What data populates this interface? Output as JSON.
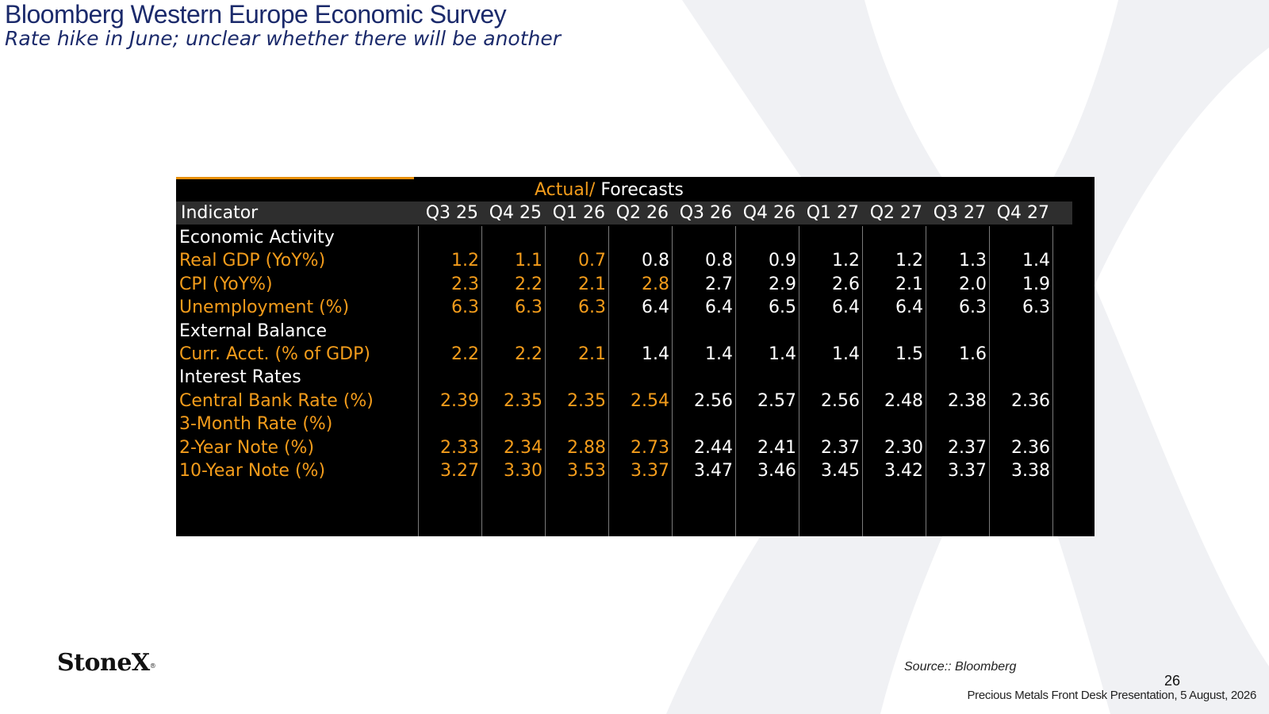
{
  "slide": {
    "title": "Bloomberg Western Europe Economic Survey",
    "subtitle": "Rate hike in June; unclear whether there will be another"
  },
  "table": {
    "group_label_a": "Actual",
    "group_label_sep": "/",
    "group_label_b": " Forecasts",
    "indicator_header": "Indicator",
    "columns": [
      "Q3 25",
      "Q4 25",
      "Q1 26",
      "Q2 26",
      "Q3 26",
      "Q4 26",
      "Q1 27",
      "Q2 27",
      "Q3 27",
      "Q4 27"
    ],
    "actual_count": 3,
    "rows": [
      {
        "label": "Economic Activity",
        "kind": "section",
        "values": []
      },
      {
        "label": "Real GDP (YoY%)",
        "kind": "data",
        "values": [
          "1.2",
          "1.1",
          "0.7",
          "0.8",
          "0.8",
          "0.9",
          "1.2",
          "1.2",
          "1.3",
          "1.4"
        ]
      },
      {
        "label": "CPI (YoY%)",
        "kind": "data",
        "values": [
          "2.3",
          "2.2",
          "2.1",
          "2.8",
          "2.7",
          "2.9",
          "2.6",
          "2.1",
          "2.0",
          "1.9"
        ]
      },
      {
        "label": "Unemployment (%)",
        "kind": "data",
        "values": [
          "6.3",
          "6.3",
          "6.3",
          "6.4",
          "6.4",
          "6.5",
          "6.4",
          "6.4",
          "6.3",
          "6.3"
        ]
      },
      {
        "label": "External Balance",
        "kind": "section",
        "values": []
      },
      {
        "label": "Curr. Acct. (% of GDP)",
        "kind": "data",
        "values": [
          "2.2",
          "2.2",
          "2.1",
          "1.4",
          "1.4",
          "1.4",
          "1.4",
          "1.5",
          "1.6",
          ""
        ]
      },
      {
        "label": "Interest Rates",
        "kind": "section",
        "values": []
      },
      {
        "label": "Central Bank Rate (%)",
        "kind": "data",
        "values": [
          "2.39",
          "2.35",
          "2.35",
          "2.54",
          "2.56",
          "2.57",
          "2.56",
          "2.48",
          "2.38",
          "2.36"
        ]
      },
      {
        "label": "3-Month Rate (%)",
        "kind": "data",
        "values": [
          "",
          "",
          "",
          "",
          "",
          "",
          "",
          "",
          "",
          ""
        ]
      },
      {
        "label": "2-Year Note (%)",
        "kind": "data",
        "values": [
          "2.33",
          "2.34",
          "2.88",
          "2.73",
          "2.44",
          "2.41",
          "2.37",
          "2.30",
          "2.37",
          "2.36"
        ]
      },
      {
        "label": "10-Year Note (%)",
        "kind": "data",
        "values": [
          "3.27",
          "3.30",
          "3.53",
          "3.37",
          "3.47",
          "3.46",
          "3.45",
          "3.42",
          "3.37",
          "3.38"
        ]
      }
    ],
    "orange_cells": [
      "1.0",
      "1.1",
      "1.2",
      "2.0",
      "2.1",
      "2.2",
      "2.3",
      "3.0",
      "3.1",
      "3.2",
      "5.0",
      "5.1",
      "5.2",
      "7.0",
      "7.1",
      "7.2",
      "7.3",
      "9.0",
      "9.1",
      "9.2",
      "9.3",
      "10.0",
      "10.1",
      "10.2",
      "10.3"
    ]
  },
  "branding": {
    "logo": "StoneX",
    "logo_mark": "®"
  },
  "footer": {
    "source": "Source:: Bloomberg",
    "page_number": "26",
    "presentation": "Precious Metals Front Desk Presentation, 5 August, 2026"
  },
  "colors": {
    "title": "#1b2a6b",
    "terminal_bg": "#000000",
    "orange": "#f39c1b",
    "header_bg": "#2e2e2e",
    "watermark": "#f0f1f4"
  }
}
